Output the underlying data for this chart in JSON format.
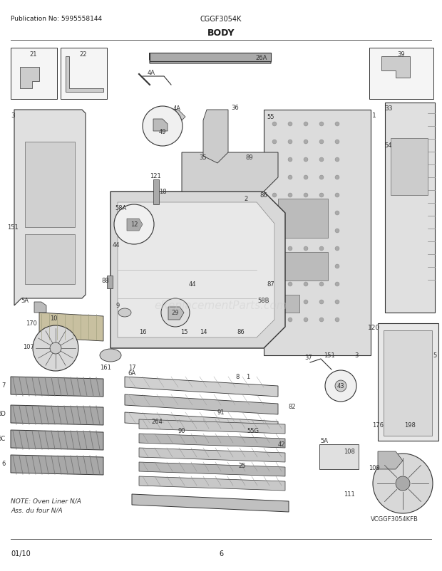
{
  "pub_no": "Publication No: 5995558144",
  "model": "CGGF3054K",
  "section": "BODY",
  "footer_left": "01/10",
  "footer_center": "6",
  "bg_color": "#ffffff",
  "text_color": "#1a1a1a",
  "border_color": "#333333",
  "fig_width": 6.2,
  "fig_height": 8.03,
  "dpi": 100,
  "watermark_text": "eReplacementParts.com",
  "note_text": "NOTE: Oven Liner N/A\nAss. du four N/A",
  "vcg_label": "VCGGF3054KFB"
}
